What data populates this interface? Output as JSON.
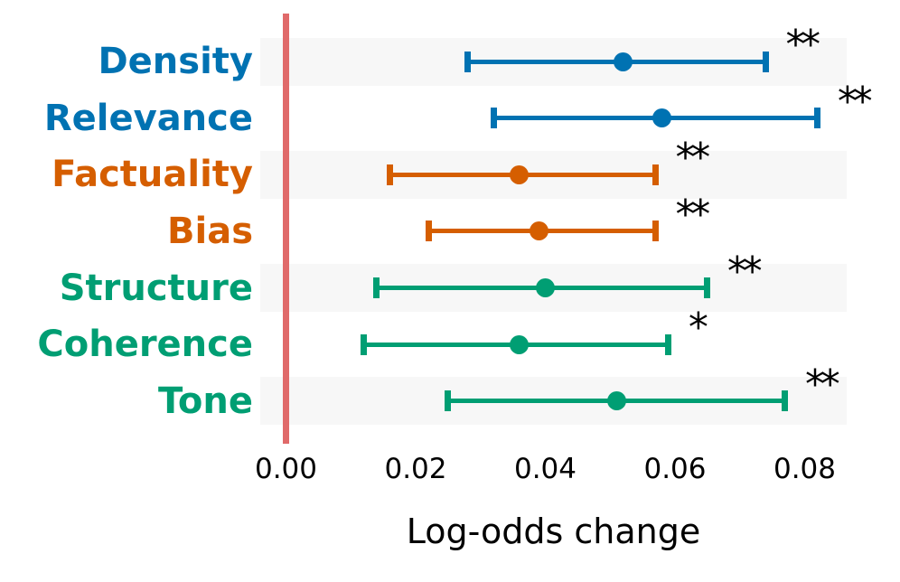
{
  "figure": {
    "background_color": "#ffffff",
    "stripe_color": "#f7f7f7",
    "zero_line_color": "#e06a6a",
    "text_color": "#000000"
  },
  "chart_data": {
    "type": "scatter",
    "subtype": "forest-plot-horizontal-errorbars",
    "title": "",
    "xlabel": "Log-odds change",
    "ylabel": "",
    "xlim": [
      -0.004,
      0.0865
    ],
    "x_tick_values": [
      0.0,
      0.02,
      0.04,
      0.06,
      0.08
    ],
    "x_tick_labels": [
      "0.00",
      "0.02",
      "0.04",
      "0.06",
      "0.08"
    ],
    "reference_line_x": 0.0,
    "grid": "off",
    "legend": "none",
    "row_stripes": "alternating (rows 1,3,5,7 shaded)",
    "palette": {
      "blue": "#0072b2",
      "orange": "#d55e00",
      "green": "#009e73"
    },
    "rows": [
      {
        "label": "Density",
        "color": "#0072b2",
        "mean": 0.052,
        "ci_low": 0.028,
        "ci_high": 0.074,
        "significance": "**"
      },
      {
        "label": "Relevance",
        "color": "#0072b2",
        "mean": 0.058,
        "ci_low": 0.032,
        "ci_high": 0.082,
        "significance": "**"
      },
      {
        "label": "Factuality",
        "color": "#d55e00",
        "mean": 0.036,
        "ci_low": 0.016,
        "ci_high": 0.057,
        "significance": "**"
      },
      {
        "label": "Bias",
        "color": "#d55e00",
        "mean": 0.039,
        "ci_low": 0.022,
        "ci_high": 0.057,
        "significance": "**"
      },
      {
        "label": "Structure",
        "color": "#009e73",
        "mean": 0.04,
        "ci_low": 0.014,
        "ci_high": 0.065,
        "significance": "**"
      },
      {
        "label": "Coherence",
        "color": "#009e73",
        "mean": 0.036,
        "ci_low": 0.012,
        "ci_high": 0.059,
        "significance": "*"
      },
      {
        "label": "Tone",
        "color": "#009e73",
        "mean": 0.051,
        "ci_low": 0.025,
        "ci_high": 0.077,
        "significance": "**"
      }
    ]
  }
}
